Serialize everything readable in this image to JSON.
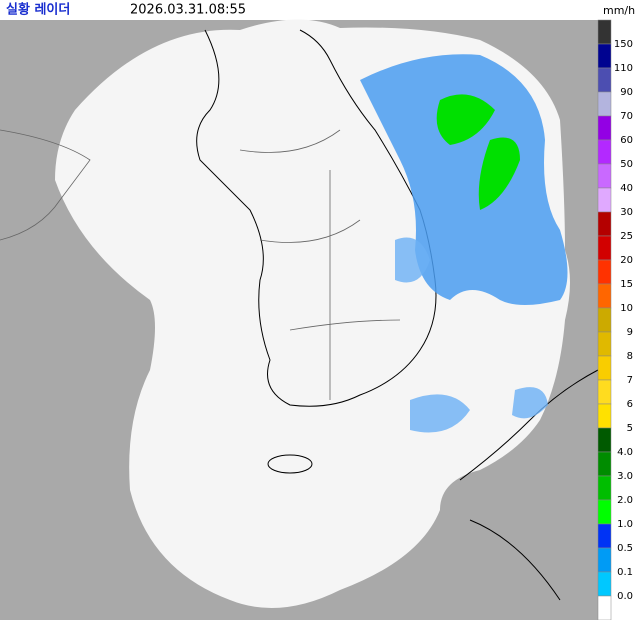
{
  "header": {
    "title": "실황 레이더",
    "timestamp": "2026.03.31.08:55",
    "unit": "mm/h"
  },
  "legend": {
    "labels": [
      "150",
      "110",
      "90",
      "70",
      "60",
      "50",
      "40",
      "30",
      "25",
      "20",
      "15",
      "10",
      "9",
      "8",
      "7",
      "6",
      "5",
      "4.0",
      "3.0",
      "2.0",
      "1.0",
      "0.5",
      "0.1",
      "0.0"
    ],
    "colors": [
      "#333333",
      "#000390",
      "#4c4eb1",
      "#b3b4de",
      "#9300e4",
      "#b329ff",
      "#c969ff",
      "#e0a9ff",
      "#b40000",
      "#d20000",
      "#ff3200",
      "#ff6600",
      "#ccaa00",
      "#e0b900",
      "#f9cd00",
      "#ffdc1f",
      "#ffe100",
      "#005a00",
      "#008c00",
      "#00be00",
      "#00ff00",
      "#0033f5",
      "#009bf5",
      "#00c8ff",
      "#ffffff"
    ]
  }
}
